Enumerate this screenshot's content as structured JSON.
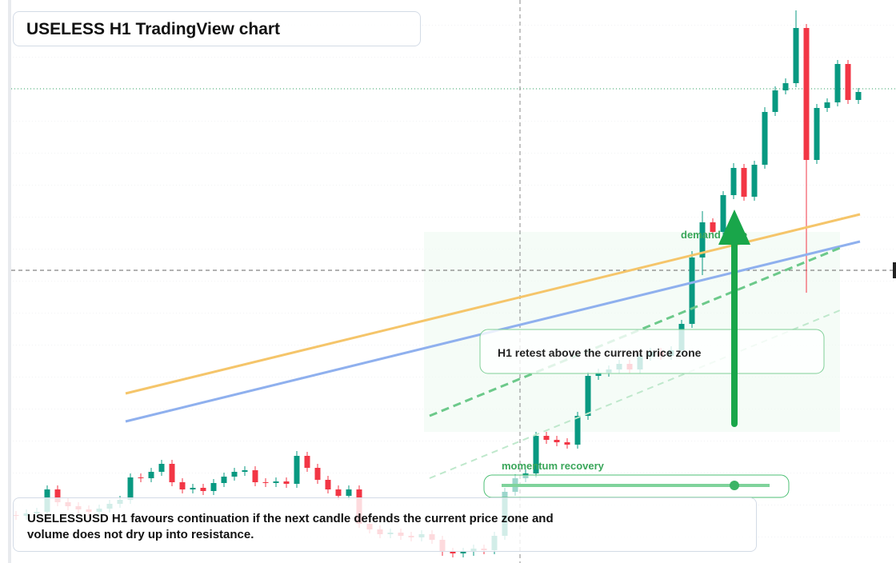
{
  "chart_data": {
    "type": "candlestick",
    "title": "USELESS H1 TradingView chart",
    "annotations": [
      "demand zone",
      "momentum recovery",
      "H1 retest above the current price zone"
    ],
    "note": "USELESSUSD H1 favours continuation if the next candle defends the current price zone and volume does not dry up into resistance.",
    "ylim": [
      0,
      704
    ],
    "up_color": "#089981",
    "down_color": "#f23645",
    "open": [
      60,
      59,
      62,
      64,
      92,
      76,
      71,
      67,
      64,
      68,
      74,
      79,
      107,
      106,
      114,
      124,
      101,
      92,
      94,
      90,
      100,
      108,
      114,
      116,
      101,
      100,
      102,
      99,
      134,
      119,
      104,
      92,
      84,
      92,
      49,
      42,
      36,
      38,
      34,
      32,
      36,
      29,
      14,
      12,
      14,
      18,
      16,
      34,
      89,
      106,
      112,
      159,
      154,
      151,
      148,
      184,
      234,
      238,
      242,
      249,
      242,
      258,
      264,
      259,
      266,
      299,
      382,
      426,
      414,
      460,
      494,
      458,
      498,
      564,
      591,
      600,
      669,
      504,
      569,
      576,
      624,
      579
    ],
    "high": [
      65,
      67,
      69,
      97,
      97,
      81,
      76,
      72,
      73,
      79,
      84,
      112,
      112,
      119,
      129,
      129,
      106,
      99,
      99,
      105,
      113,
      119,
      121,
      121,
      106,
      107,
      107,
      140,
      139,
      124,
      109,
      97,
      97,
      97,
      54,
      47,
      43,
      43,
      39,
      41,
      41,
      34,
      19,
      19,
      23,
      23,
      39,
      94,
      111,
      117,
      164,
      164,
      159,
      156,
      189,
      239,
      243,
      247,
      254,
      254,
      263,
      269,
      269,
      271,
      304,
      390,
      440,
      431,
      465,
      500,
      499,
      503,
      570,
      596,
      606,
      691,
      674,
      574,
      581,
      629,
      629,
      594
    ],
    "low": [
      54,
      54,
      57,
      59,
      71,
      66,
      62,
      59,
      59,
      63,
      69,
      74,
      101,
      101,
      109,
      96,
      87,
      87,
      85,
      85,
      95,
      103,
      109,
      96,
      95,
      95,
      94,
      94,
      114,
      99,
      87,
      79,
      79,
      44,
      37,
      31,
      31,
      29,
      27,
      27,
      24,
      9,
      7,
      7,
      9,
      11,
      11,
      29,
      84,
      101,
      107,
      149,
      146,
      143,
      143,
      179,
      229,
      233,
      237,
      237,
      237,
      253,
      254,
      254,
      261,
      294,
      360,
      409,
      409,
      455,
      453,
      453,
      493,
      559,
      586,
      595,
      338,
      499,
      564,
      571,
      574,
      574
    ],
    "close": [
      59,
      62,
      64,
      92,
      76,
      71,
      67,
      64,
      68,
      74,
      79,
      107,
      106,
      114,
      124,
      101,
      92,
      94,
      90,
      100,
      108,
      114,
      116,
      101,
      100,
      102,
      99,
      134,
      119,
      104,
      92,
      84,
      92,
      49,
      42,
      36,
      38,
      34,
      32,
      36,
      29,
      14,
      12,
      14,
      18,
      16,
      34,
      89,
      106,
      112,
      159,
      154,
      151,
      148,
      184,
      234,
      238,
      242,
      249,
      242,
      258,
      264,
      259,
      266,
      299,
      382,
      426,
      414,
      460,
      494,
      458,
      498,
      564,
      591,
      600,
      669,
      504,
      569,
      576,
      624,
      579,
      589
    ]
  }
}
